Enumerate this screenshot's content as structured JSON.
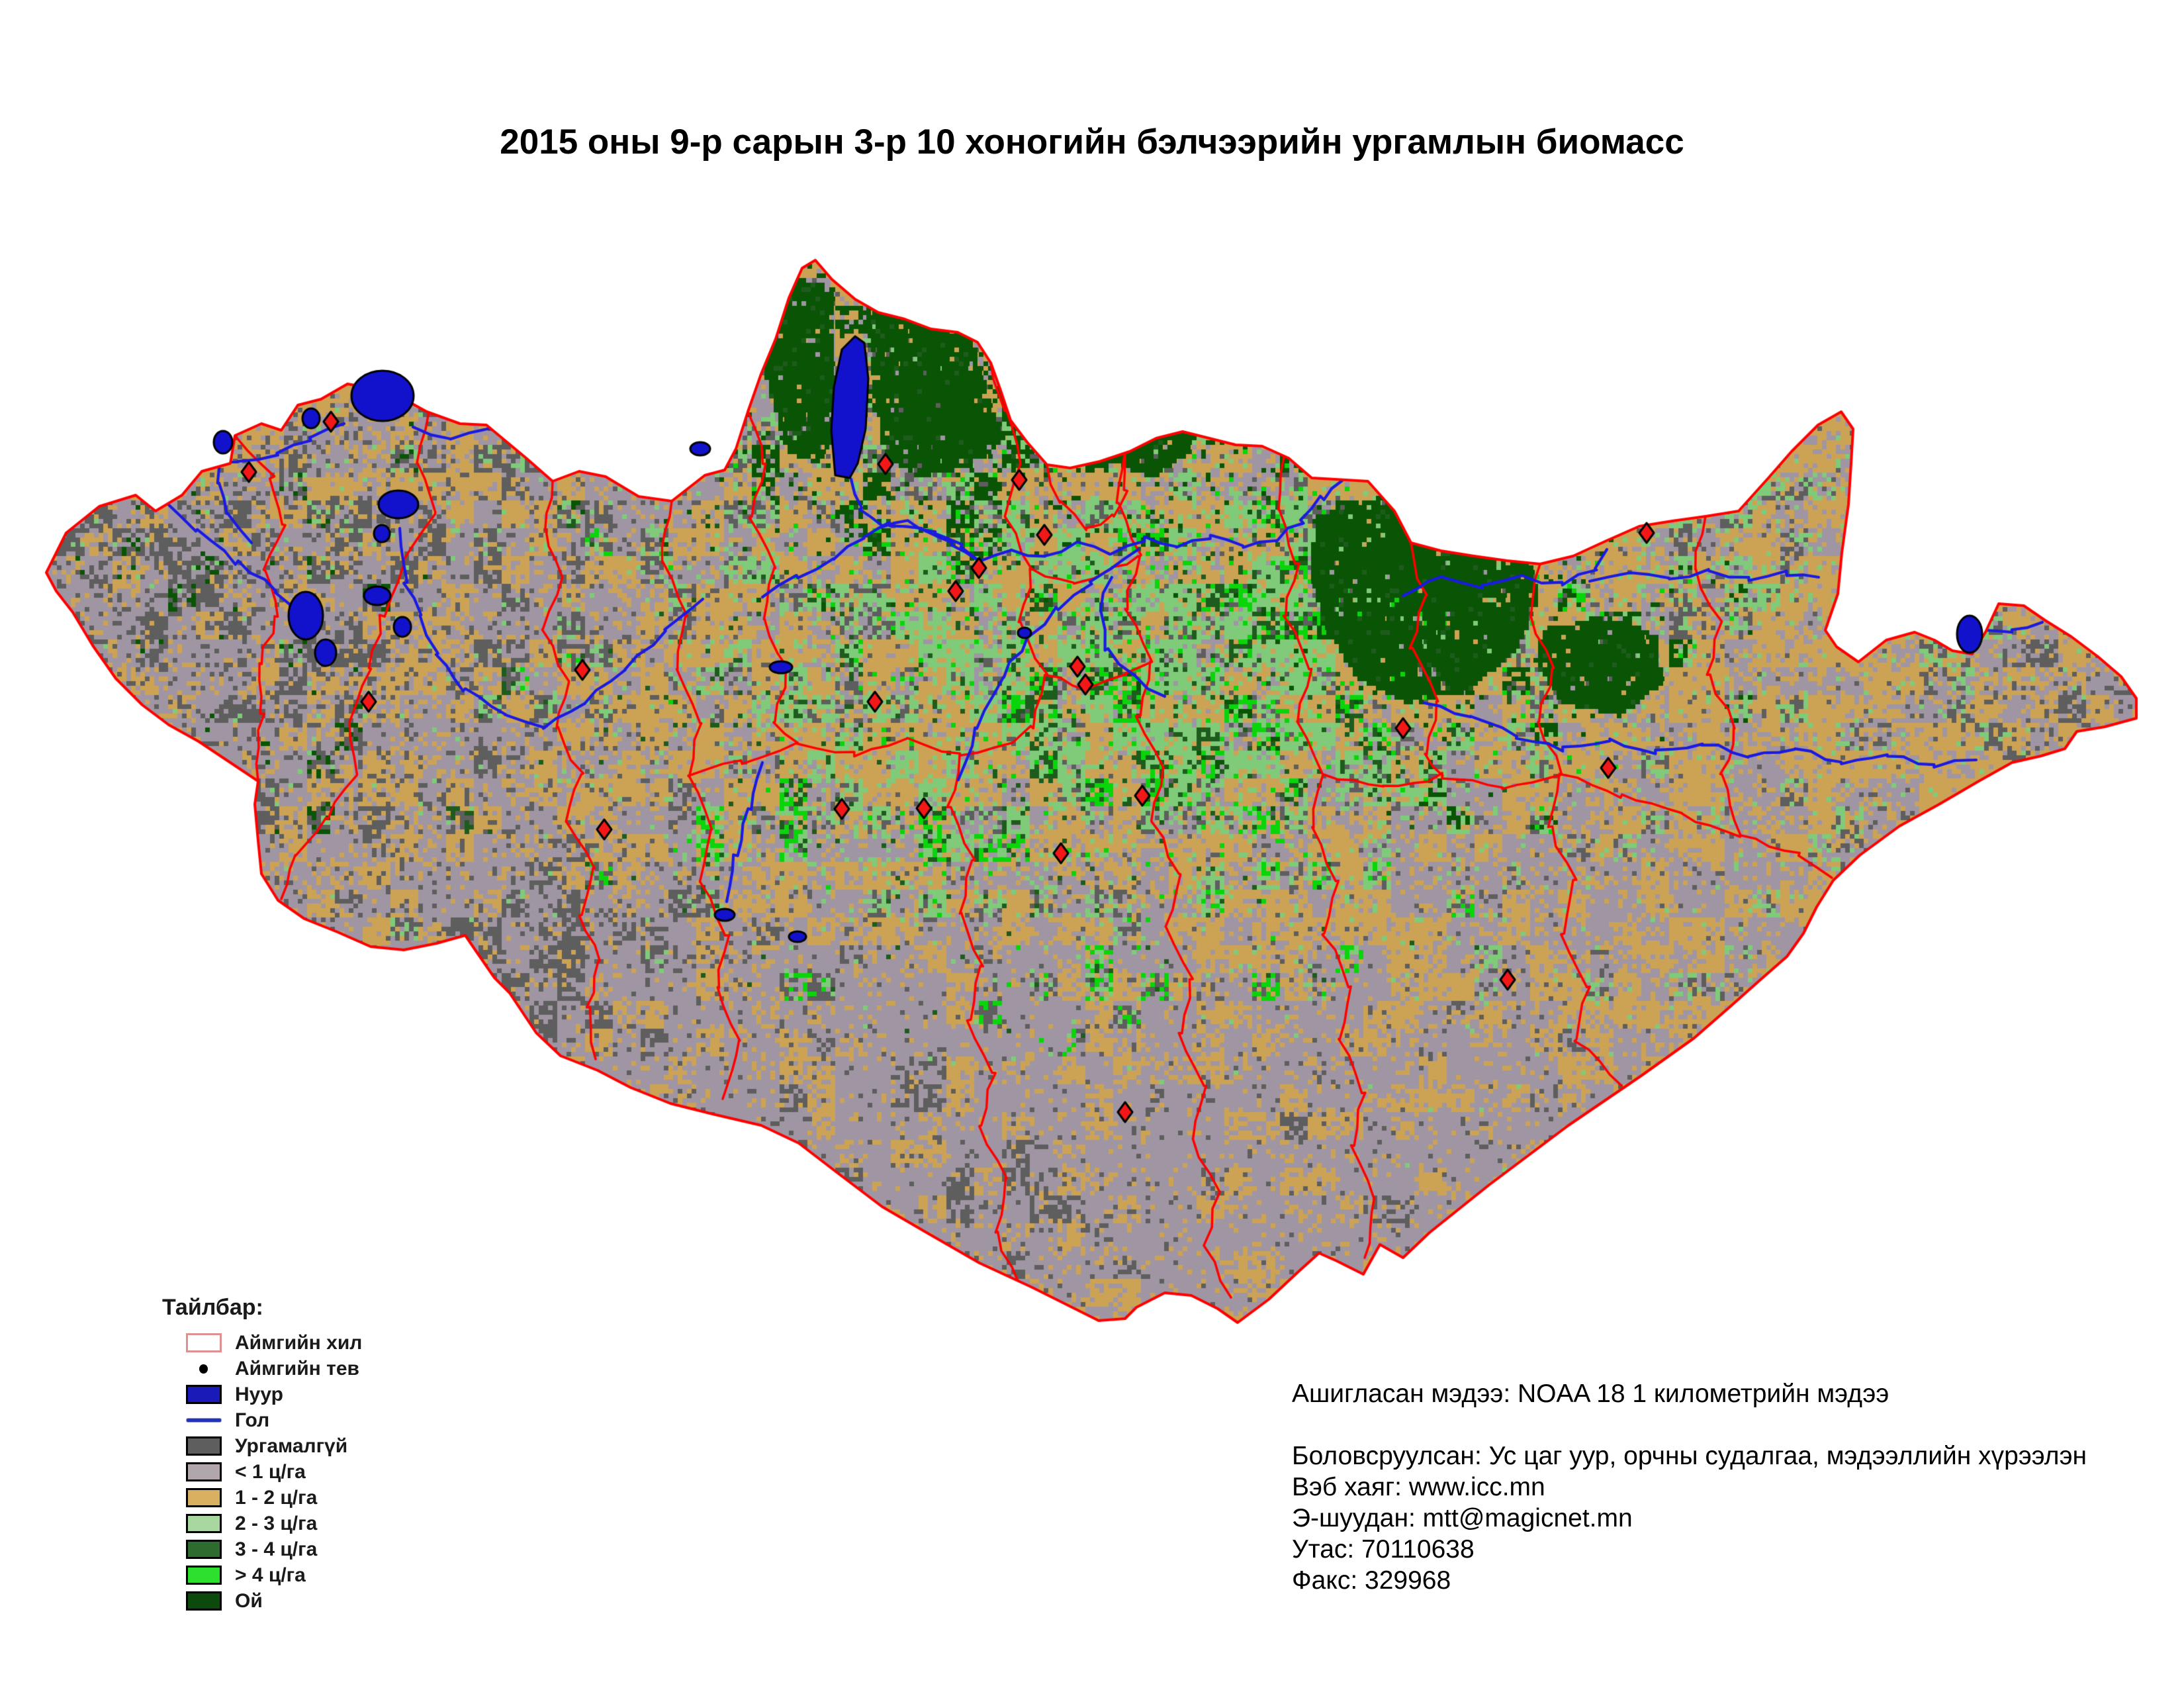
{
  "title": "2015 оны 9-р сарын 3-р 10 хоногийн бэлчээрийн ургамлын биомасс",
  "map": {
    "colors": {
      "background": "#ffffff",
      "tan": "#cca355",
      "mauve": "#a096a3",
      "dark_gray": "#5e5e5e",
      "light_green": "#7fcb7a",
      "medium_green": "#1e5c1e",
      "bright_green": "#0ad50a",
      "forest": "#0a5505",
      "lake": "#1212cc",
      "lake_outline": "#000000",
      "river": "#1a1ae0",
      "border": "#ff0000",
      "marker": "#f21818",
      "marker_outline": "#000000"
    }
  },
  "legend": {
    "title": "Тайлбар:",
    "items": [
      {
        "label": "Аймгийн хил",
        "type": "outline-rect",
        "color": "#ffffff",
        "stroke": "#e09090"
      },
      {
        "label": "Аймгийн тев",
        "type": "dot",
        "color": "#000000"
      },
      {
        "label": "Нуур",
        "type": "rect",
        "color": "#1a1ab8"
      },
      {
        "label": "Гол",
        "type": "line",
        "color": "#2233bb"
      },
      {
        "label": "Ургамалгүй",
        "type": "rect",
        "color": "#5e5e5e"
      },
      {
        "label": "< 1 ц/га",
        "type": "rect",
        "color": "#b0a6ac"
      },
      {
        "label": "1 - 2 ц/га",
        "type": "rect",
        "color": "#d8b060"
      },
      {
        "label": "2 - 3 ц/га",
        "type": "rect",
        "color": "#a8d8a0"
      },
      {
        "label": "3 - 4 ц/га",
        "type": "rect",
        "color": "#2e6b2e"
      },
      {
        "label": "> 4 ц/га",
        "type": "rect",
        "color": "#2ee02e"
      },
      {
        "label": "Ой",
        "type": "rect",
        "color": "#0b4a0b"
      }
    ]
  },
  "credits": {
    "lines": [
      "Ашигласан мэдээ: NOAA 18 1 километрийн мэдээ",
      "",
      "Боловсруулсан: Ус цаг уур, орчны судалгаа, мэдээллийн хүрээлэн",
      "Вэб хаяг: www.icc.mn",
      "Э-шуудан: mtt@magicnet.mn",
      "Утас: 70110638",
      "Факс: 329968"
    ]
  }
}
